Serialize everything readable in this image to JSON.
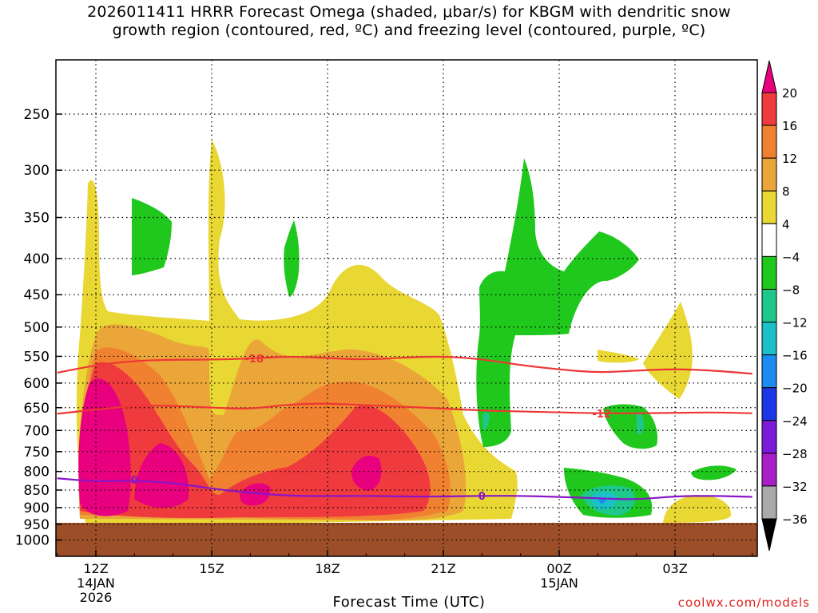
{
  "chart_data": {
    "type": "contour",
    "title_line1": "2026011411 HRRR Forecast Omega (shaded, μbar/s) for KBGM with dendritic snow",
    "title_line2": "growth region (contoured, red, ºC) and freezing level (contoured, purple, ºC)",
    "xlabel": "Forecast Time (UTC)",
    "ylabel": "",
    "x_ticks": [
      {
        "hour": 0,
        "label": "12Z",
        "sub1": "14JAN",
        "sub2": "2026"
      },
      {
        "hour": 3,
        "label": "15Z",
        "sub1": "",
        "sub2": ""
      },
      {
        "hour": 6,
        "label": "18Z",
        "sub1": "",
        "sub2": ""
      },
      {
        "hour": 9,
        "label": "21Z",
        "sub1": "",
        "sub2": ""
      },
      {
        "hour": 12,
        "label": "00Z",
        "sub1": "15JAN",
        "sub2": ""
      },
      {
        "hour": 15,
        "label": "03Z",
        "sub1": "",
        "sub2": ""
      }
    ],
    "xlim_hours": [
      -1,
      17
    ],
    "y_ticks": [
      250,
      300,
      350,
      400,
      450,
      500,
      550,
      600,
      650,
      700,
      750,
      800,
      850,
      900,
      950,
      1000
    ],
    "ylim_hPa": [
      200,
      1050
    ],
    "ground_pressure_hPa": 955,
    "colorbar": {
      "labels": [
        "20",
        "16",
        "12",
        "8",
        "4",
        "−4",
        "−8",
        "−12",
        "−16",
        "−20",
        "−24",
        "−28",
        "−32",
        "−36"
      ],
      "colors": [
        "#e8007e",
        "#ef3a3e",
        "#f08130",
        "#eaa638",
        "#e9d734",
        "#ffffff",
        "#20c81e",
        "#1dc88a",
        "#1cc0c8",
        "#1c8cf0",
        "#1c38e6",
        "#7a1bd8",
        "#a81fc8",
        "#aaaaaa",
        "#000000"
      ]
    },
    "contours": [
      {
        "name": "dendritic -18C",
        "color": "#ee3535",
        "label": "-18",
        "points": [
          [
            -1,
            580
          ],
          [
            0,
            566
          ],
          [
            1,
            558
          ],
          [
            2,
            556
          ],
          [
            3,
            556
          ],
          [
            4,
            554
          ],
          [
            5,
            550
          ],
          [
            6,
            553
          ],
          [
            7,
            556
          ],
          [
            8,
            552
          ],
          [
            9,
            550
          ],
          [
            10,
            555
          ],
          [
            11,
            566
          ],
          [
            12,
            574
          ],
          [
            13,
            580
          ],
          [
            14,
            576
          ],
          [
            15,
            573
          ],
          [
            16,
            576
          ],
          [
            17,
            582
          ]
        ]
      },
      {
        "name": "dendritic -12C",
        "color": "#ee3535",
        "label": "-12",
        "points": [
          [
            -1,
            663
          ],
          [
            0,
            654
          ],
          [
            1,
            646
          ],
          [
            2,
            646
          ],
          [
            3,
            650
          ],
          [
            4,
            653
          ],
          [
            5,
            643
          ],
          [
            6,
            641
          ],
          [
            7,
            645
          ],
          [
            8,
            648
          ],
          [
            9,
            652
          ],
          [
            10,
            656
          ],
          [
            11,
            658
          ],
          [
            12,
            660
          ],
          [
            13,
            662
          ],
          [
            14,
            662
          ],
          [
            15,
            661
          ],
          [
            16,
            660
          ],
          [
            17,
            662
          ]
        ]
      },
      {
        "name": "freezing level 0C",
        "color": "#8a14c8",
        "label": "0",
        "points": [
          [
            -1,
            818
          ],
          [
            0,
            827
          ],
          [
            1,
            824
          ],
          [
            2,
            830
          ],
          [
            3,
            846
          ],
          [
            4,
            858
          ],
          [
            5,
            866
          ],
          [
            6,
            867
          ],
          [
            7,
            866
          ],
          [
            8,
            868
          ],
          [
            9,
            868
          ],
          [
            10,
            866
          ],
          [
            11,
            866
          ],
          [
            12,
            869
          ],
          [
            13,
            873
          ],
          [
            14,
            877
          ],
          [
            15,
            867
          ],
          [
            16,
            866
          ],
          [
            17,
            869
          ]
        ]
      }
    ],
    "contour_labels": [
      {
        "text": "-18",
        "hour": 4.1,
        "hPa": 554,
        "color": "#ee3535"
      },
      {
        "text": "-12",
        "hour": 13.1,
        "hPa": 662,
        "color": "#ee3535"
      },
      {
        "text": "0",
        "hour": 1.0,
        "hPa": 822,
        "color": "#8a14c8"
      },
      {
        "text": "0",
        "hour": 10.0,
        "hPa": 866,
        "color": "#8a14c8"
      }
    ],
    "credit": "coolwx.com/models"
  }
}
